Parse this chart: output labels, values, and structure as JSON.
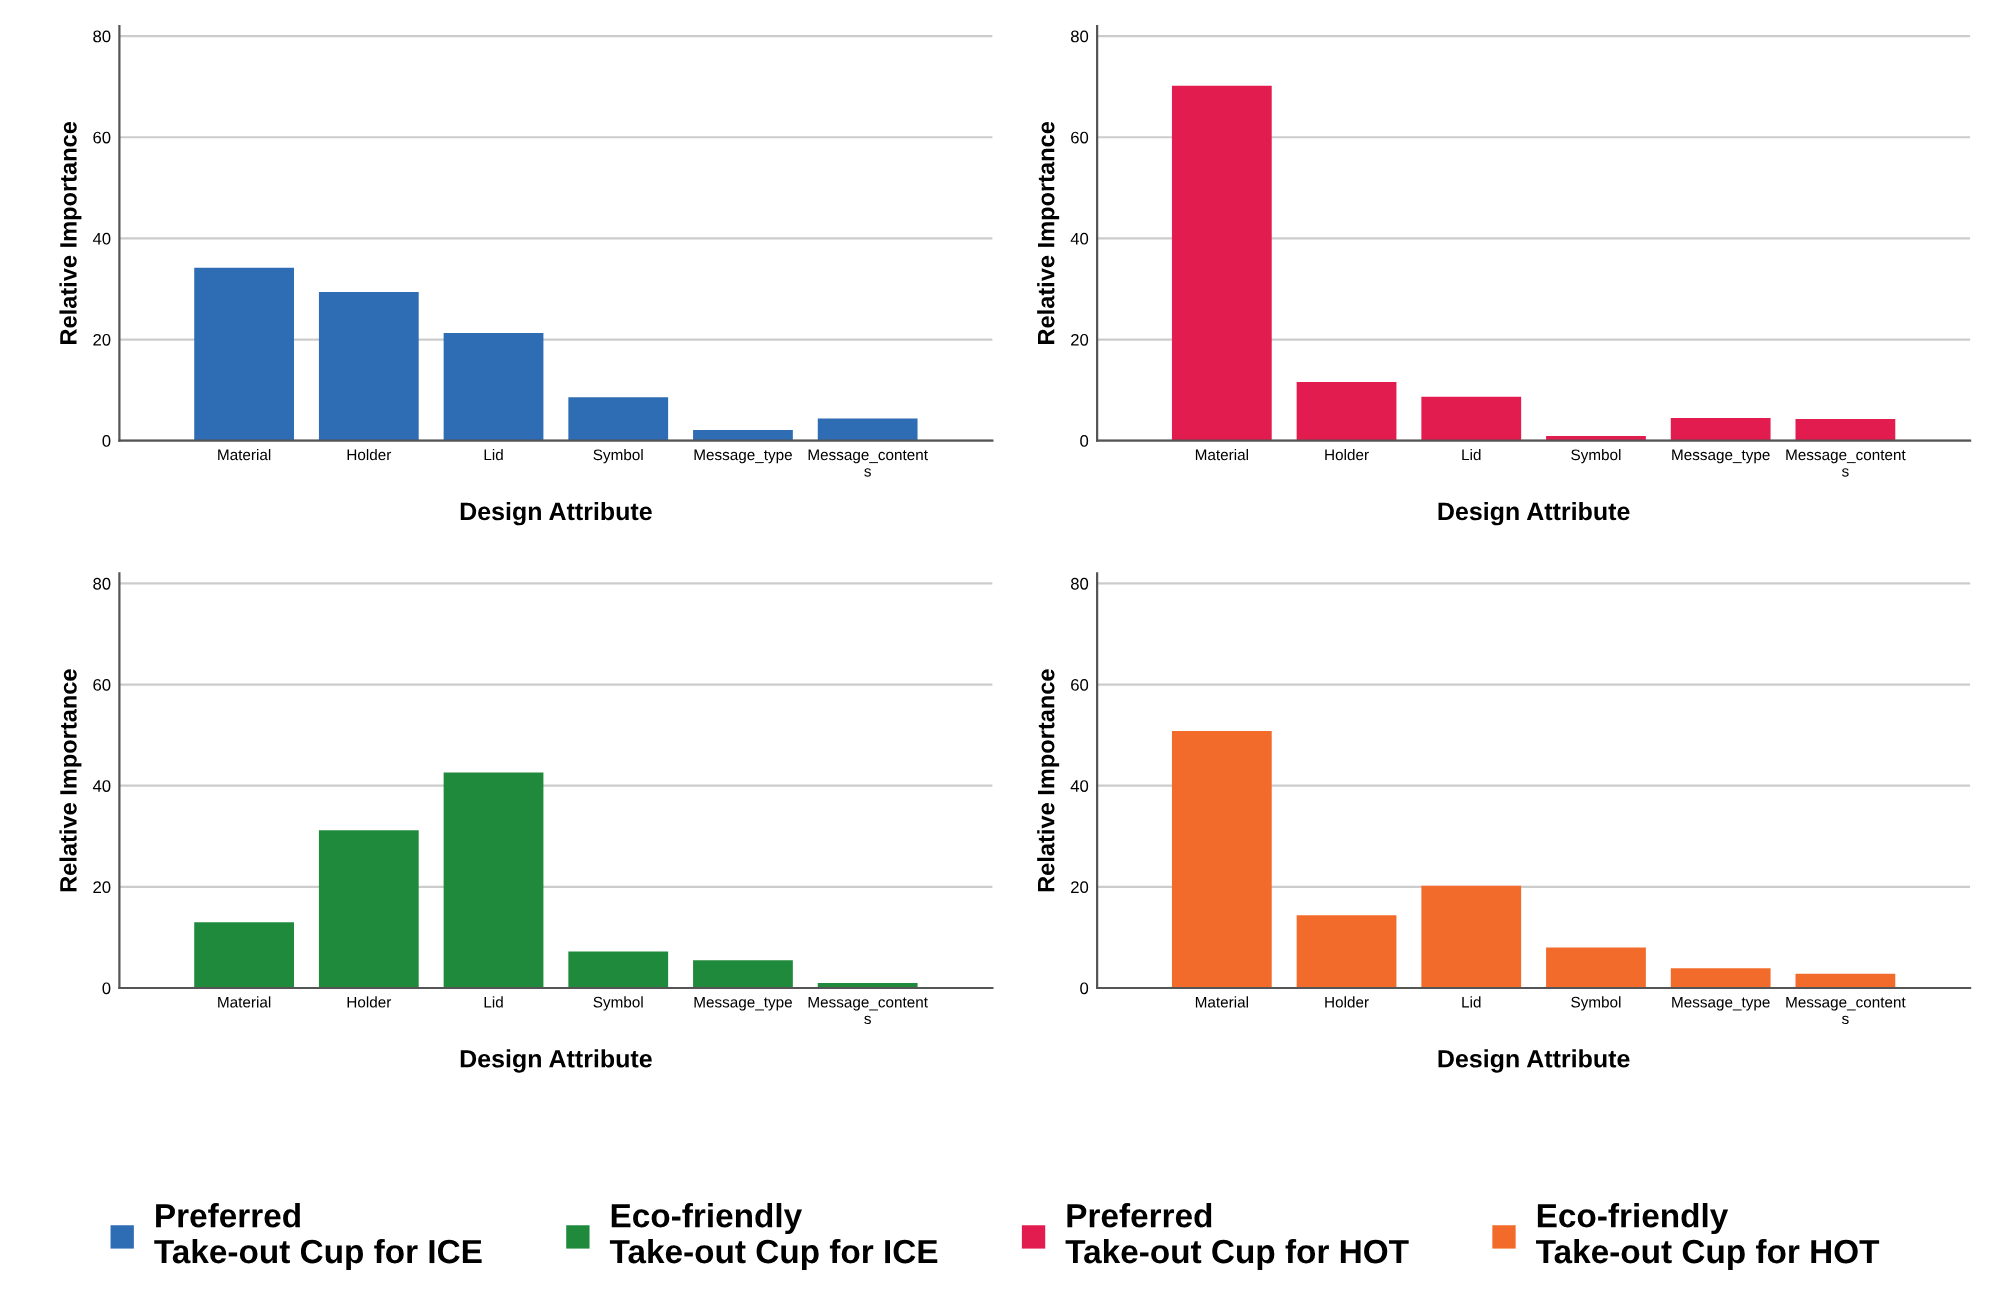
{
  "chart_data": [
    {
      "type": "bar",
      "xlabel": "Design Attribute",
      "ylabel": "Relative Importance",
      "categories": [
        "Material",
        "Holder",
        "Lid",
        "Symbol",
        "Message_type",
        "Message_contents"
      ],
      "series": [
        {
          "name": "Preferred\nTake-out Cup for ICE",
          "color": "#2e6db4",
          "values": [
            34.2,
            29.4,
            21.3,
            8.6,
            2.1,
            4.4
          ]
        }
      ],
      "ylim": [
        0,
        82
      ],
      "yticks": [
        0,
        20,
        40,
        60,
        80
      ],
      "grid": "y",
      "legend": "bottom"
    },
    {
      "type": "bar",
      "xlabel": "Design Attribute",
      "ylabel": "Relative Importance",
      "categories": [
        "Material",
        "Holder",
        "Lid",
        "Symbol",
        "Message_type",
        "Message_contents"
      ],
      "series": [
        {
          "name": "Preferred\nTake-out Cup for HOT",
          "color": "#e31c4f",
          "values": [
            70.2,
            11.6,
            8.7,
            0.9,
            4.5,
            4.3
          ]
        }
      ],
      "ylim": [
        0,
        82
      ],
      "yticks": [
        0,
        20,
        40,
        60,
        80
      ],
      "grid": "y",
      "legend": "bottom"
    },
    {
      "type": "bar",
      "xlabel": "Design Attribute",
      "ylabel": "Relative Importance",
      "categories": [
        "Material",
        "Holder",
        "Lid",
        "Symbol",
        "Message_type",
        "Message_contents"
      ],
      "series": [
        {
          "name": "Eco-friendly\nTake-out Cup for ICE",
          "color": "#208a3c",
          "values": [
            13.0,
            31.2,
            42.6,
            7.2,
            5.5,
            1.0
          ]
        }
      ],
      "ylim": [
        0,
        82
      ],
      "yticks": [
        0,
        20,
        40,
        60,
        80
      ],
      "grid": "y",
      "legend": "bottom"
    },
    {
      "type": "bar",
      "xlabel": "Design Attribute",
      "ylabel": "Relative Importance",
      "categories": [
        "Material",
        "Holder",
        "Lid",
        "Symbol",
        "Message_type",
        "Message_contents"
      ],
      "series": [
        {
          "name": "Eco-friendly\nTake-out Cup for HOT",
          "color": "#f26b2a",
          "values": [
            50.8,
            14.4,
            20.2,
            8.0,
            3.9,
            2.8
          ]
        }
      ],
      "ylim": [
        0,
        82
      ],
      "yticks": [
        0,
        20,
        40,
        60,
        80
      ],
      "grid": "y",
      "legend": "bottom"
    }
  ]
}
